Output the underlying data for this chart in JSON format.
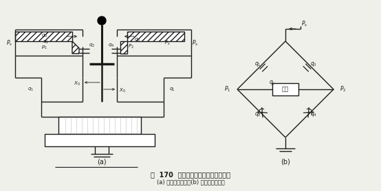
{
  "bg_color": "#f0f0eb",
  "line_color": "#1a1a1a",
  "title_line1": "图  170  由双喷嘴挡板阀构成的前置级",
  "title_line2": "(a) 前置级的组成；(b) 全桥结构的油路",
  "label_a": "(a)",
  "label_b": "(b)"
}
